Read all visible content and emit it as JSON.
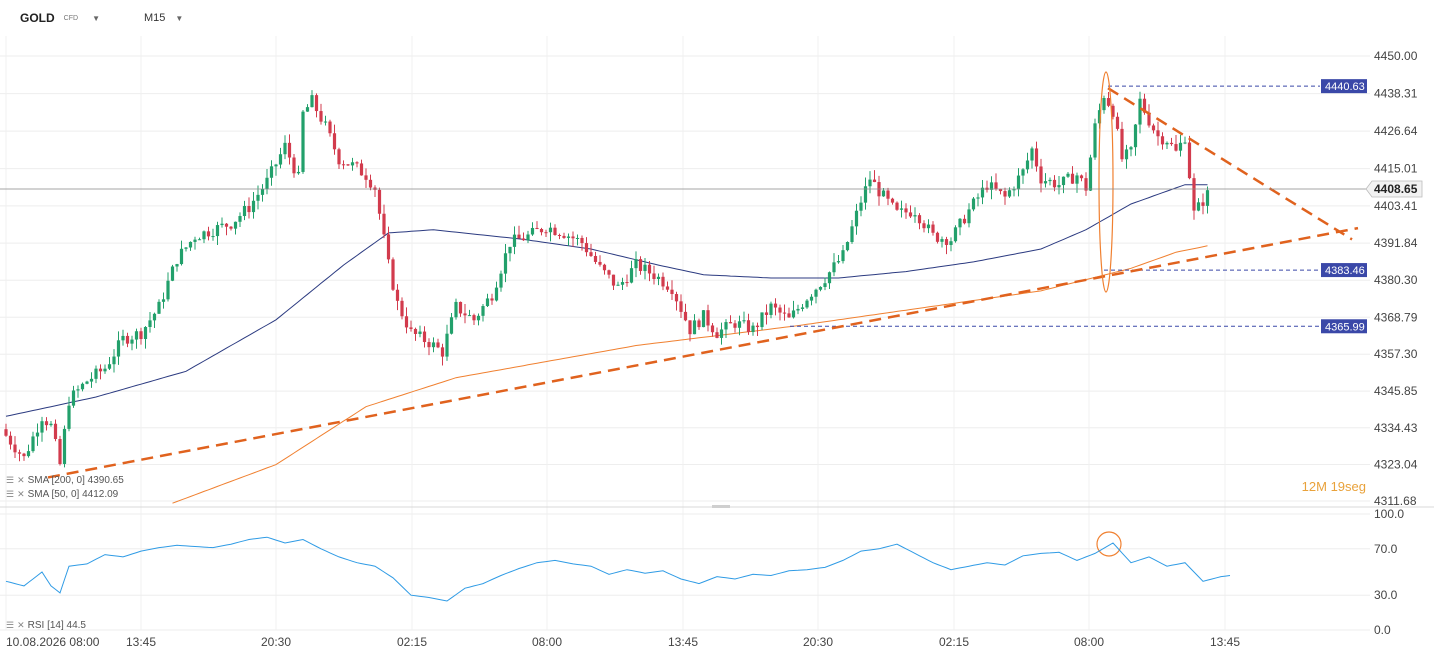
{
  "toolbar": {
    "symbol": "GOLD",
    "symbol_type": "CFD",
    "timeframe": "M15"
  },
  "colors": {
    "bull": "#22a06b",
    "bear": "#d23b4d",
    "sma50": "#2b3a80",
    "sma200": "#f08030",
    "trend": "#e0621e",
    "rsi": "#2f9be5",
    "label_bg": "#3a48a8",
    "price_line": "#888888"
  },
  "legend": {
    "sma200": "SMA [200, 0] 4390.65",
    "sma50": "SMA [50, 0] 4412.09",
    "rsi": "RSI [14] 44.5"
  },
  "countdown": {
    "minutes": "12",
    "m_unit": "M",
    "seconds": "19",
    "s_unit": "seg"
  },
  "chart_data": {
    "type": "candlestick",
    "price_axis": {
      "ticks": [
        "4450.00",
        "4438.31",
        "4426.64",
        "4415.01",
        "4403.41",
        "4391.84",
        "4380.30",
        "4368.79",
        "4357.30",
        "4345.85",
        "4334.43",
        "4323.04",
        "4311.68"
      ],
      "range": [
        4311.68,
        4450.0
      ]
    },
    "x_axis": {
      "ticks": [
        "10.08.2026 08:00",
        "13:45",
        "20:30",
        "02:15",
        "08:00",
        "13:45",
        "20:30",
        "02:15",
        "08:00",
        "13:45"
      ]
    },
    "current_price": "4408.65",
    "level_labels": [
      "4440.63",
      "4383.46",
      "4365.99"
    ],
    "levels": [
      4440.63,
      4383.46,
      4365.99
    ],
    "anchors": {
      "close": [
        [
          0,
          4332
        ],
        [
          4,
          4325
        ],
        [
          8,
          4338
        ],
        [
          10,
          4335
        ],
        [
          12,
          4323
        ],
        [
          14,
          4343
        ],
        [
          18,
          4349
        ],
        [
          22,
          4353
        ],
        [
          26,
          4362
        ],
        [
          30,
          4364
        ],
        [
          34,
          4372
        ],
        [
          38,
          4387
        ],
        [
          42,
          4394
        ],
        [
          46,
          4396
        ],
        [
          50,
          4398
        ],
        [
          54,
          4403
        ],
        [
          58,
          4411
        ],
        [
          62,
          4422
        ],
        [
          65,
          4412
        ],
        [
          66,
          4432
        ],
        [
          68,
          4436
        ],
        [
          71,
          4428
        ],
        [
          74,
          4418
        ],
        [
          77,
          4416
        ],
        [
          80,
          4413
        ],
        [
          82,
          4409
        ],
        [
          85,
          4385
        ],
        [
          87,
          4373
        ],
        [
          90,
          4364
        ],
        [
          94,
          4361
        ],
        [
          97,
          4358
        ],
        [
          100,
          4372
        ],
        [
          104,
          4368
        ],
        [
          108,
          4376
        ],
        [
          112,
          4392
        ],
        [
          116,
          4394
        ],
        [
          120,
          4397
        ],
        [
          124,
          4395
        ],
        [
          128,
          4392
        ],
        [
          132,
          4384
        ],
        [
          136,
          4378
        ],
        [
          140,
          4385
        ],
        [
          144,
          4382
        ],
        [
          148,
          4378
        ],
        [
          152,
          4365
        ],
        [
          155,
          4369
        ],
        [
          158,
          4364
        ],
        [
          162,
          4367
        ],
        [
          166,
          4365
        ],
        [
          170,
          4372
        ],
        [
          174,
          4368
        ],
        [
          178,
          4375
        ],
        [
          182,
          4381
        ],
        [
          186,
          4388
        ],
        [
          190,
          4405
        ],
        [
          192,
          4412
        ],
        [
          194,
          4408
        ],
        [
          198,
          4401
        ],
        [
          202,
          4402
        ],
        [
          206,
          4394
        ],
        [
          210,
          4393
        ],
        [
          214,
          4402
        ],
        [
          218,
          4410
        ],
        [
          222,
          4406
        ],
        [
          226,
          4414
        ],
        [
          228,
          4421
        ],
        [
          230,
          4412
        ],
        [
          234,
          4410
        ],
        [
          238,
          4413
        ],
        [
          240,
          4409
        ],
        [
          242,
          4428
        ],
        [
          244,
          4438
        ],
        [
          246,
          4433
        ],
        [
          248,
          4418
        ],
        [
          250,
          4420
        ],
        [
          252,
          4436
        ],
        [
          254,
          4430
        ],
        [
          256,
          4425
        ],
        [
          258,
          4424
        ],
        [
          260,
          4420
        ],
        [
          262,
          4425
        ],
        [
          264,
          4401
        ],
        [
          266,
          4405
        ],
        [
          267,
          4407
        ]
      ],
      "sma50": [
        [
          0,
          4338
        ],
        [
          20,
          4344
        ],
        [
          40,
          4352
        ],
        [
          60,
          4368
        ],
        [
          75,
          4385
        ],
        [
          85,
          4395
        ],
        [
          95,
          4396
        ],
        [
          115,
          4393
        ],
        [
          130,
          4390
        ],
        [
          145,
          4385
        ],
        [
          155,
          4382
        ],
        [
          170,
          4381
        ],
        [
          185,
          4381
        ],
        [
          200,
          4383
        ],
        [
          215,
          4386
        ],
        [
          230,
          4390
        ],
        [
          240,
          4396
        ],
        [
          250,
          4404
        ],
        [
          256,
          4407
        ],
        [
          262,
          4410
        ],
        [
          267,
          4410
        ]
      ],
      "sma200": [
        [
          37,
          4311
        ],
        [
          60,
          4323
        ],
        [
          80,
          4341
        ],
        [
          100,
          4350
        ],
        [
          140,
          4360
        ],
        [
          175,
          4366
        ],
        [
          200,
          4371
        ],
        [
          230,
          4377
        ],
        [
          250,
          4384
        ],
        [
          260,
          4389
        ],
        [
          267,
          4391
        ]
      ],
      "rsi": [
        [
          0,
          42
        ],
        [
          4,
          38
        ],
        [
          8,
          50
        ],
        [
          10,
          38
        ],
        [
          12,
          32
        ],
        [
          14,
          55
        ],
        [
          18,
          57
        ],
        [
          22,
          65
        ],
        [
          26,
          63
        ],
        [
          30,
          68
        ],
        [
          34,
          71
        ],
        [
          38,
          73
        ],
        [
          42,
          72
        ],
        [
          46,
          71
        ],
        [
          50,
          74
        ],
        [
          54,
          78
        ],
        [
          58,
          80
        ],
        [
          62,
          75
        ],
        [
          66,
          78
        ],
        [
          70,
          70
        ],
        [
          74,
          63
        ],
        [
          78,
          58
        ],
        [
          82,
          55
        ],
        [
          86,
          45
        ],
        [
          90,
          30
        ],
        [
          94,
          28
        ],
        [
          98,
          25
        ],
        [
          102,
          36
        ],
        [
          106,
          40
        ],
        [
          110,
          47
        ],
        [
          114,
          53
        ],
        [
          118,
          58
        ],
        [
          122,
          60
        ],
        [
          126,
          57
        ],
        [
          130,
          55
        ],
        [
          134,
          48
        ],
        [
          138,
          52
        ],
        [
          142,
          49
        ],
        [
          146,
          51
        ],
        [
          150,
          44
        ],
        [
          154,
          40
        ],
        [
          158,
          46
        ],
        [
          162,
          44
        ],
        [
          166,
          48
        ],
        [
          170,
          47
        ],
        [
          174,
          51
        ],
        [
          178,
          52
        ],
        [
          182,
          54
        ],
        [
          186,
          60
        ],
        [
          190,
          68
        ],
        [
          194,
          70
        ],
        [
          198,
          74
        ],
        [
          202,
          66
        ],
        [
          206,
          58
        ],
        [
          210,
          52
        ],
        [
          214,
          55
        ],
        [
          218,
          58
        ],
        [
          222,
          56
        ],
        [
          226,
          64
        ],
        [
          230,
          66
        ],
        [
          234,
          67
        ],
        [
          238,
          60
        ],
        [
          242,
          66
        ],
        [
          246,
          75
        ],
        [
          250,
          58
        ],
        [
          254,
          63
        ],
        [
          258,
          55
        ],
        [
          262,
          58
        ],
        [
          266,
          42
        ],
        [
          270,
          46
        ],
        [
          272,
          47
        ]
      ]
    }
  }
}
